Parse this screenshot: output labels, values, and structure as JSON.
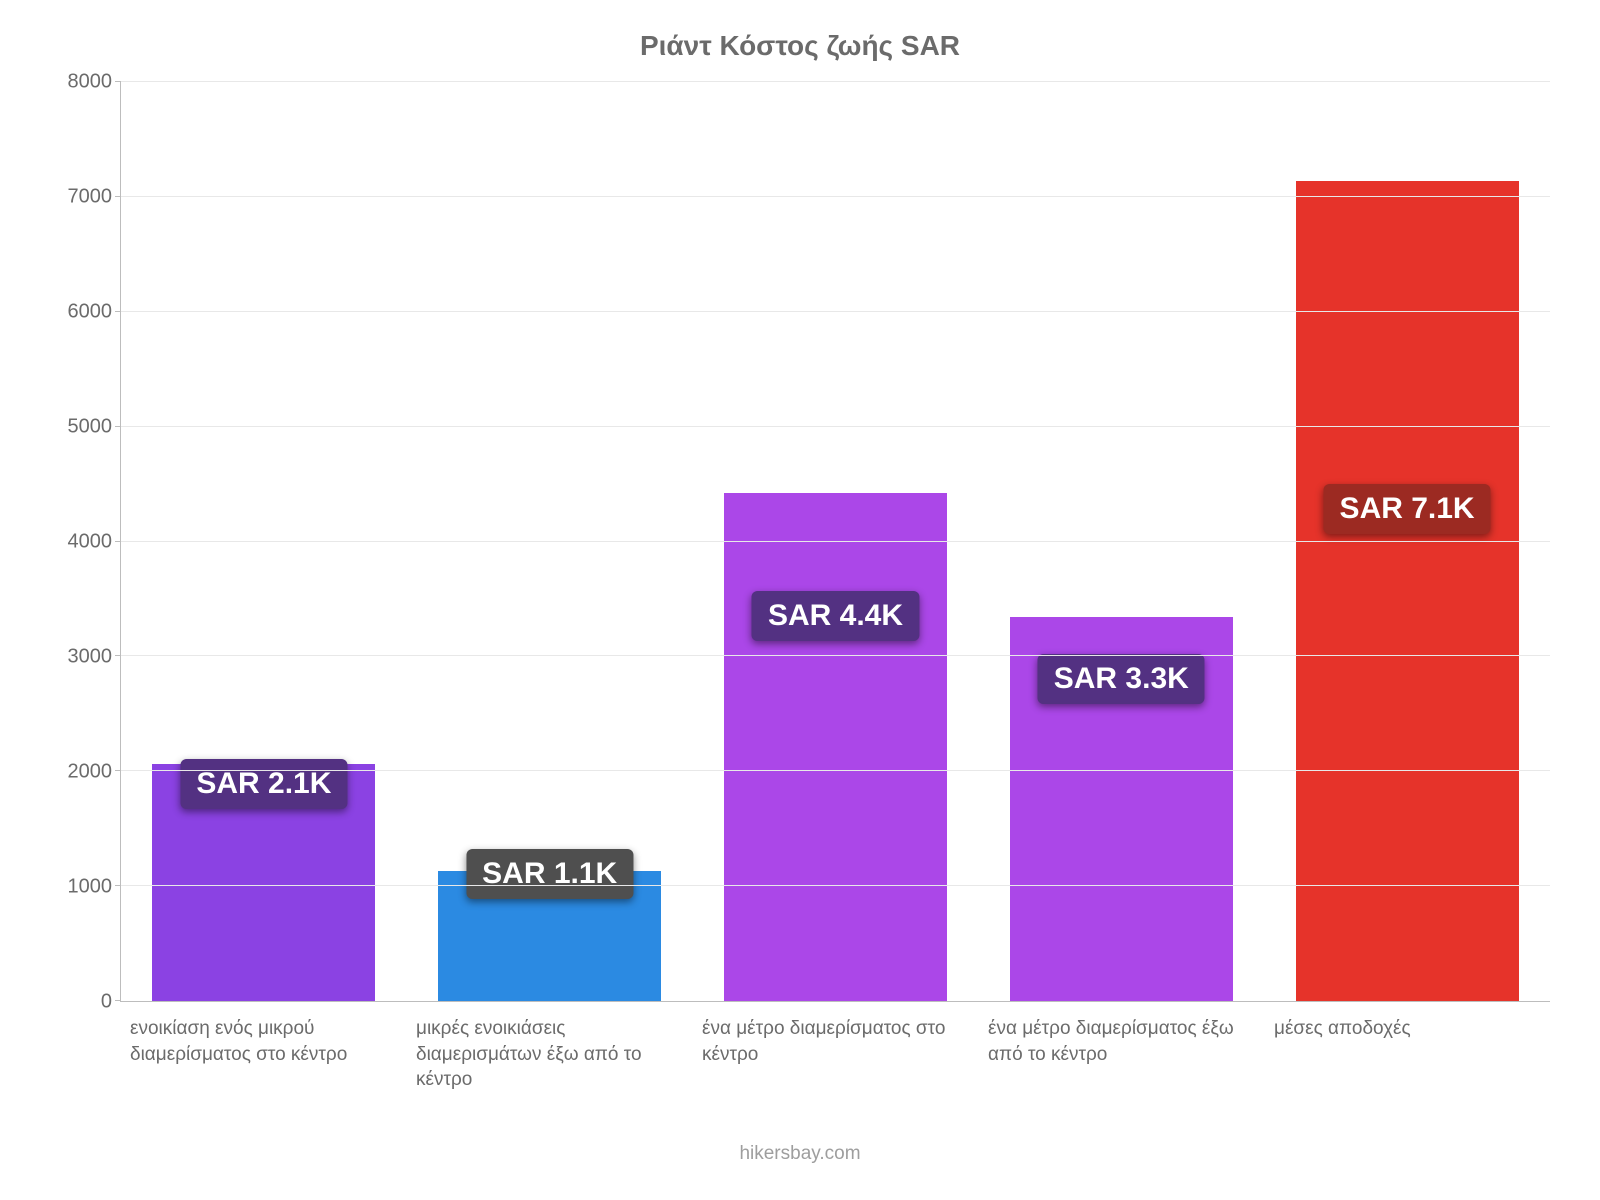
{
  "chart": {
    "type": "bar",
    "title": "Ριάντ Κόστος ζωής SAR",
    "title_fontsize": 28,
    "title_color": "#6b6b6b",
    "background_color": "#ffffff",
    "axis_color": "#bdbdbd",
    "grid_color": "#e8e8e8",
    "label_color": "#6b6b6b",
    "ylim_min": 0,
    "ylim_max": 8000,
    "ytick_step": 1000,
    "yticks": [
      {
        "value": 0,
        "label": "0"
      },
      {
        "value": 1000,
        "label": "1000"
      },
      {
        "value": 2000,
        "label": "2000"
      },
      {
        "value": 3000,
        "label": "3000"
      },
      {
        "value": 4000,
        "label": "4000"
      },
      {
        "value": 5000,
        "label": "5000"
      },
      {
        "value": 6000,
        "label": "6000"
      },
      {
        "value": 7000,
        "label": "7000"
      },
      {
        "value": 8000,
        "label": "8000"
      }
    ],
    "bar_width_pct": 78,
    "badge_fontsize": 30,
    "badge_text_color": "#ffffff",
    "xlabel_fontsize": 19,
    "bars": [
      {
        "category": "ενοικίαση ενός μικρού διαμερίσματος στο κέντρο",
        "value": 2060,
        "value_label": "SAR 2.1K",
        "bar_color": "#8b42e3",
        "badge_bg": "#533182",
        "badge_offset": -650
      },
      {
        "category": "μικρές ενοικιάσεις διαμερισμάτων έξω από το κέντρο",
        "value": 1130,
        "value_label": "SAR 1.1K",
        "bar_color": "#2b8ae2",
        "badge_bg": "#4f4f4f",
        "badge_offset": -180
      },
      {
        "category": "ένα μέτρο διαμερίσματος στο κέντρο",
        "value": 4420,
        "value_label": "SAR 4.4K",
        "bar_color": "#ab47e8",
        "badge_bg": "#533182",
        "badge_offset": -1930
      },
      {
        "category": "ένα μέτρο διαμερίσματος έξω από το κέντρο",
        "value": 3340,
        "value_label": "SAR 3.3K",
        "bar_color": "#ab47e8",
        "badge_bg": "#533182",
        "badge_offset": -1280
      },
      {
        "category": "μέσες αποδοχές",
        "value": 7140,
        "value_label": "SAR 7.1K",
        "bar_color": "#e6332a",
        "badge_bg": "#9c2a22",
        "badge_offset": -3200
      }
    ],
    "footer": "hikersbay.com",
    "footer_color": "#9e9e9e",
    "footer_fontsize": 19
  }
}
